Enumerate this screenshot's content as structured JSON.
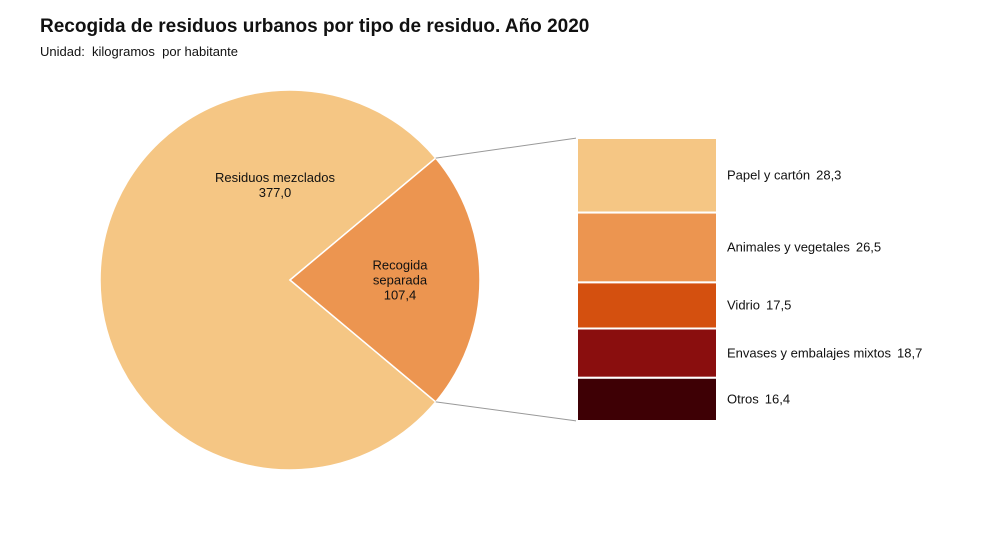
{
  "chart_data": {
    "type": "bar_of_pie",
    "title": "Recogida de residuos urbanos por tipo de residuo. Año 2020",
    "subtitle": "Unidad:  kilogramos  por habitante",
    "categories": [
      "Residuos mezclados",
      "Recogida separada"
    ],
    "values": [
      377.0,
      107.4
    ],
    "value_labels": [
      "377,0",
      "107,4"
    ],
    "colors": [
      "#f5c684",
      "#ec9550"
    ],
    "breakdown": {
      "categories": [
        "Papel y cartón",
        "Animales y vegetales",
        "Vidrio",
        "Envases y embalajes mixtos",
        "Otros"
      ],
      "values": [
        28.3,
        26.5,
        17.5,
        18.7,
        16.4
      ],
      "value_labels": [
        "28,3",
        "26,5",
        "17,5",
        "18,7",
        "16,4"
      ],
      "colors": [
        "#f5c684",
        "#ec9550",
        "#d4500f",
        "#8a0e0e",
        "#3e0005"
      ]
    }
  }
}
